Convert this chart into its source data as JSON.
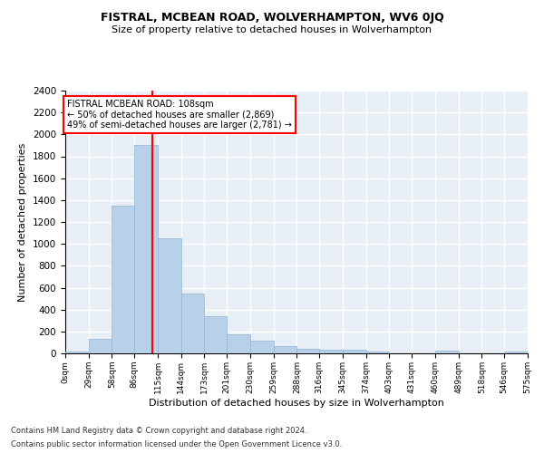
{
  "title": "FISTRAL, MCBEAN ROAD, WOLVERHAMPTON, WV6 0JQ",
  "subtitle": "Size of property relative to detached houses in Wolverhampton",
  "xlabel": "Distribution of detached houses by size in Wolverhampton",
  "ylabel": "Number of detached properties",
  "bar_color": "#b8d0e8",
  "bar_edgecolor": "#90b4d4",
  "background_color": "#e8eef5",
  "grid_color": "#ffffff",
  "vline_x": 108,
  "vline_color": "red",
  "annotation_title": "FISTRAL MCBEAN ROAD: 108sqm",
  "annotation_line1": "← 50% of detached houses are smaller (2,869)",
  "annotation_line2": "49% of semi-detached houses are larger (2,781) →",
  "bin_edges": [
    0,
    29,
    58,
    86,
    115,
    144,
    173,
    201,
    230,
    259,
    288,
    316,
    345,
    374,
    403,
    431,
    460,
    489,
    518,
    546,
    575
  ],
  "bin_labels": [
    "0sqm",
    "29sqm",
    "58sqm",
    "86sqm",
    "115sqm",
    "144sqm",
    "173sqm",
    "201sqm",
    "230sqm",
    "259sqm",
    "288sqm",
    "316sqm",
    "345sqm",
    "374sqm",
    "403sqm",
    "431sqm",
    "460sqm",
    "489sqm",
    "518sqm",
    "546sqm",
    "575sqm"
  ],
  "bar_heights": [
    20,
    130,
    1350,
    1900,
    1050,
    550,
    340,
    175,
    115,
    65,
    40,
    30,
    30,
    20,
    0,
    0,
    25,
    0,
    0,
    20
  ],
  "ylim": [
    0,
    2400
  ],
  "yticks": [
    0,
    200,
    400,
    600,
    800,
    1000,
    1200,
    1400,
    1600,
    1800,
    2000,
    2200,
    2400
  ],
  "footnote1": "Contains HM Land Registry data © Crown copyright and database right 2024.",
  "footnote2": "Contains public sector information licensed under the Open Government Licence v3.0."
}
